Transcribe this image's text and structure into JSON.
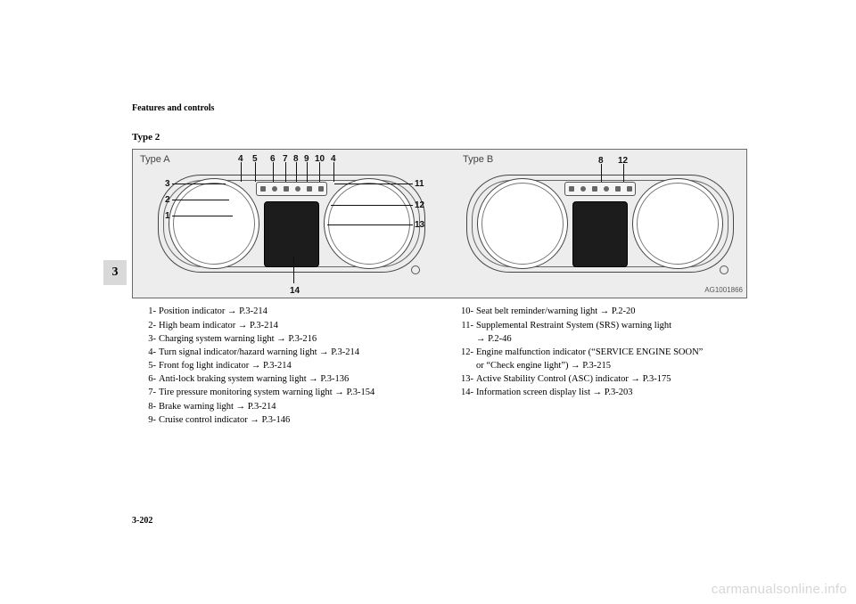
{
  "header": "Features and controls",
  "subhead": "Type 2",
  "chapter": "3",
  "pageNumber": "3-202",
  "watermark": "carmanualsonline.info",
  "figure": {
    "labelA": "Type A",
    "labelB": "Type B",
    "code": "AG1001866",
    "numsA_top": [
      "4",
      "5",
      "6",
      "7",
      "8",
      "9",
      "10",
      "4"
    ],
    "numsA_left": [
      "3",
      "2",
      "1"
    ],
    "numsA_right": [
      "11",
      "12",
      "13"
    ],
    "numsA_bottom": "14",
    "numsB_top": [
      "8",
      "12"
    ],
    "colors": {
      "figure_bg": "#ededed",
      "border": "#6a6a6a",
      "screen": "#1c1c1c"
    }
  },
  "legend": {
    "left": [
      {
        "n": "1-",
        "t": "Position indicator → P.3-214"
      },
      {
        "n": "2-",
        "t": "High beam indicator → P.3-214"
      },
      {
        "n": "3-",
        "t": "Charging system warning light → P.3-216"
      },
      {
        "n": "4-",
        "t": "Turn signal indicator/hazard warning light → P.3-214"
      },
      {
        "n": "5-",
        "t": "Front fog light indicator → P.3-214"
      },
      {
        "n": "6-",
        "t": "Anti-lock braking system warning light → P.3-136"
      },
      {
        "n": "7-",
        "t": "Tire pressure monitoring system warning light → P.3-154"
      },
      {
        "n": "8-",
        "t": "Brake warning light → P.3-214"
      },
      {
        "n": "9-",
        "t": "Cruise control indicator → P.3-146"
      }
    ],
    "right": [
      {
        "n": "10-",
        "t": "Seat belt reminder/warning light → P.2-20"
      },
      {
        "n": "11-",
        "t": "Supplemental Restraint System (SRS) warning light",
        "sub": "→ P.2-46"
      },
      {
        "n": "12-",
        "t": "Engine malfunction indicator (“SERVICE ENGINE SOON”",
        "sub": "or  “Check engine light”) → P.3-215"
      },
      {
        "n": "13-",
        "t": "Active Stability Control (ASC) indicator → P.3-175"
      },
      {
        "n": "14-",
        "t": "Information screen display list → P.3-203"
      }
    ]
  }
}
